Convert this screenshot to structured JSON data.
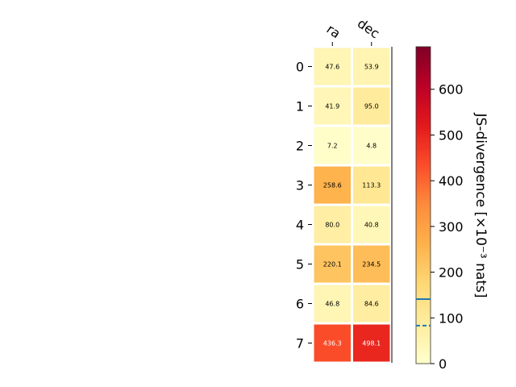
{
  "chart_data": {
    "type": "heatmap",
    "title": "",
    "columns": [
      "ra",
      "dec"
    ],
    "rows": [
      "0",
      "1",
      "2",
      "3",
      "4",
      "5",
      "6",
      "7"
    ],
    "values": [
      [
        47.6,
        53.9
      ],
      [
        41.9,
        95.0
      ],
      [
        7.2,
        4.8
      ],
      [
        258.6,
        113.3
      ],
      [
        80.0,
        40.8
      ],
      [
        220.1,
        234.5
      ],
      [
        46.8,
        84.6
      ],
      [
        436.3,
        498.1
      ]
    ],
    "cell_labels": [
      [
        "47.6",
        "53.9"
      ],
      [
        "41.9",
        "95.0"
      ],
      [
        "7.2",
        "4.8"
      ],
      [
        "258.6",
        "113.3"
      ],
      [
        "80.0",
        "40.8"
      ],
      [
        "220.1",
        "234.5"
      ],
      [
        "46.8",
        "84.6"
      ],
      [
        "436.3",
        "498.1"
      ]
    ],
    "colormap": "YlOrRd",
    "colorbar": {
      "label": "JS-divergence [×10⁻³ nats]",
      "range": [
        0,
        693
      ],
      "ticks": [
        0,
        100,
        200,
        300,
        400,
        500,
        600
      ],
      "tick_labels": [
        "0",
        "100",
        "200",
        "300",
        "400",
        "500",
        "600"
      ],
      "reference_lines": [
        {
          "value": 141,
          "style": "solid",
          "color": "#1f77b4"
        },
        {
          "value": 83,
          "style": "dashed",
          "color": "#1f77b4"
        }
      ]
    }
  }
}
